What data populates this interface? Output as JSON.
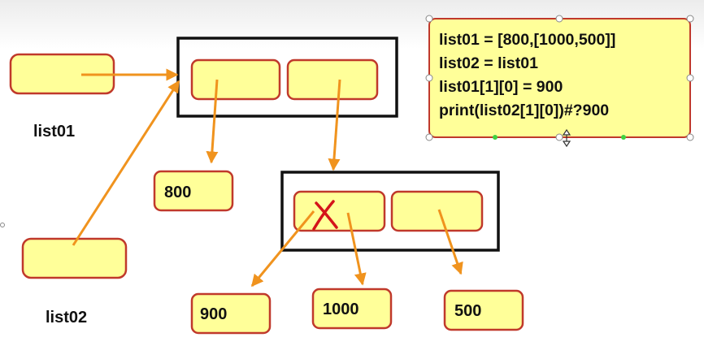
{
  "labels": {
    "list01": "list01",
    "list02": "list02"
  },
  "values": {
    "v800": "800",
    "v900": "900",
    "v1000": "1000",
    "v500": "500"
  },
  "code_lines": [
    "list01 = [800,[1000,500]]",
    "list02 = list01",
    "list01[1][0] = 900",
    "print(list02[1][0])#?900"
  ],
  "colors": {
    "box_fill": "#ffff99",
    "box_border": "#c0392b",
    "arrow": "#f0931e",
    "cross": "#d4141a"
  }
}
